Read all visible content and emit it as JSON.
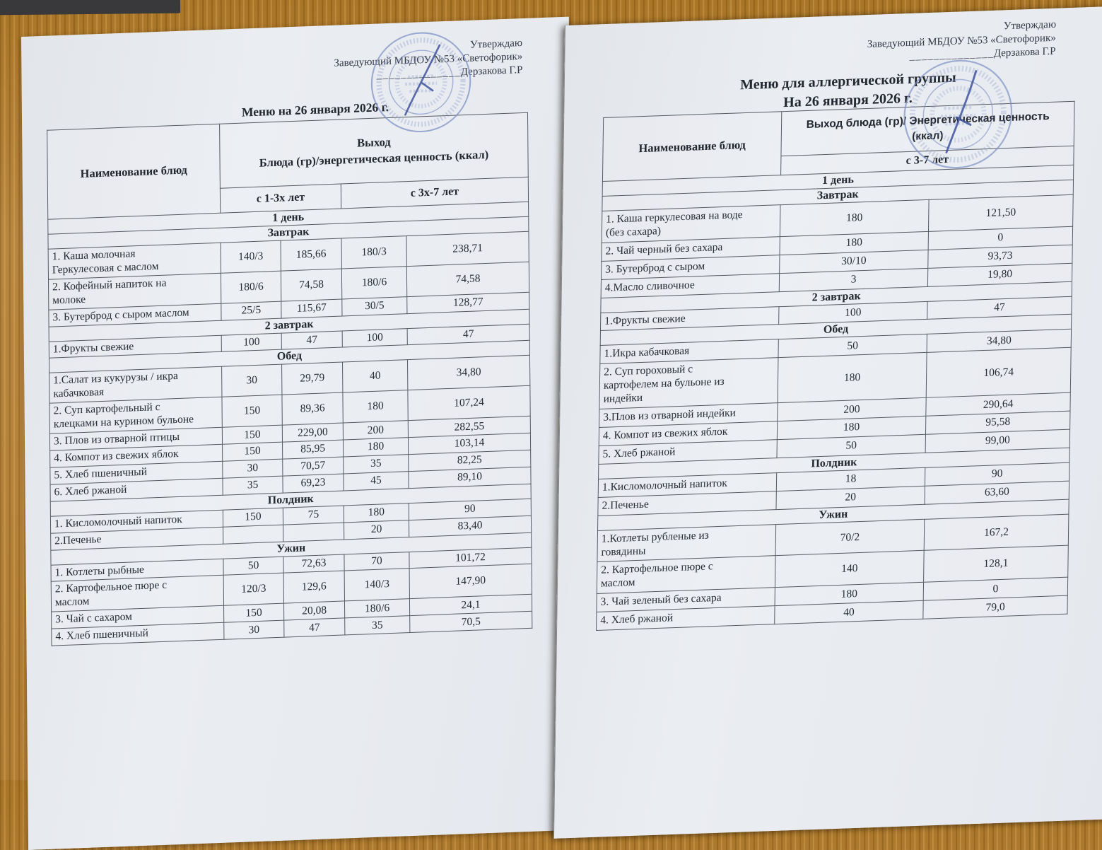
{
  "pages": {
    "left": {
      "approval": {
        "line1": "Утверждаю",
        "line2": "Заведующий МБДОУ №53 «Светофорик»",
        "signature_blank": "______________",
        "signee": "Дерзакова Г.Р"
      },
      "title": "Меню на 26 января 2026 г.",
      "table": {
        "header": {
          "name_col": "Наименование блюд",
          "value_col": "Выход\nБлюда (гр)/энергетическая ценность (ккал)",
          "age_groups": [
            "с 1-3х лет",
            "с 3х-7 лет"
          ]
        },
        "rows": [
          {
            "type": "section",
            "label": "1 день"
          },
          {
            "type": "section",
            "label": "Завтрак"
          },
          {
            "type": "item",
            "name": "1. Каша молочная\nГеркулесовая с маслом",
            "values": [
              "140/3",
              "185,66",
              "180/3",
              "238,71"
            ]
          },
          {
            "type": "item",
            "name": "2. Кофейный напиток на\nмолоке",
            "values": [
              "180/6",
              "74,58",
              "180/6",
              "74,58"
            ]
          },
          {
            "type": "item",
            "name": "3. Бутерброд с сыром маслом",
            "values": [
              "25/5",
              "115,67",
              "30/5",
              "128,77"
            ]
          },
          {
            "type": "section",
            "label": "2 завтрак"
          },
          {
            "type": "item",
            "name": "1.Фрукты свежие",
            "values": [
              "100",
              "47",
              "100",
              "47"
            ]
          },
          {
            "type": "section",
            "label": "Обед"
          },
          {
            "type": "item",
            "name": "1.Салат из кукурузы / икра\nкабачковая",
            "values": [
              "30",
              "29,79",
              "40",
              "34,80"
            ]
          },
          {
            "type": "item",
            "name": "2. Суп картофельный с\nклецками на курином бульоне",
            "values": [
              "150",
              "89,36",
              "180",
              "107,24"
            ]
          },
          {
            "type": "item",
            "name": "3. Плов из отварной птицы",
            "values": [
              "150",
              "229,00",
              "200",
              "282,55"
            ]
          },
          {
            "type": "item",
            "name": "4. Компот из свежих яблок",
            "values": [
              "150",
              "85,95",
              "180",
              "103,14"
            ]
          },
          {
            "type": "item",
            "name": "5. Хлеб пшеничный",
            "values": [
              "30",
              "70,57",
              "35",
              "82,25"
            ]
          },
          {
            "type": "item",
            "name": "6. Хлеб ржаной",
            "values": [
              "35",
              "69,23",
              "45",
              "89,10"
            ]
          },
          {
            "type": "section",
            "label": "Полдник"
          },
          {
            "type": "item",
            "name": "1. Кисломолочный напиток",
            "values": [
              "150",
              "75",
              "180",
              "90"
            ]
          },
          {
            "type": "item",
            "name": "2.Печенье",
            "values": [
              "",
              "",
              "20",
              "83,40"
            ]
          },
          {
            "type": "section",
            "label": "Ужин"
          },
          {
            "type": "item",
            "name": "1. Котлеты рыбные",
            "values": [
              "50",
              "72,63",
              "70",
              "101,72"
            ]
          },
          {
            "type": "item",
            "name": "2. Картофельное пюре с\nмаслом",
            "values": [
              "120/3",
              "129,6",
              "140/3",
              "147,90"
            ]
          },
          {
            "type": "item",
            "name": "3. Чай с сахаром",
            "values": [
              "150",
              "20,08",
              "180/6",
              "24,1"
            ]
          },
          {
            "type": "item",
            "name": "4. Хлеб пшеничный",
            "values": [
              "30",
              "47",
              "35",
              "70,5"
            ]
          }
        ]
      }
    },
    "right": {
      "approval": {
        "line1": "Утверждаю",
        "line2": "Заведующий МБДОУ №53 «Светофорик»",
        "signature_blank": "______________",
        "signee": "Дерзакова Г.Р"
      },
      "title_line1": "Меню для аллергической группы",
      "title_line2": "На 26 января 2026 г.",
      "table": {
        "header": {
          "name_col": "Наименование блюд",
          "value_col": "Выход блюда (гр)/ Энергетическая ценность\n(ккал)",
          "age_groups": [
            "с 3-7 лет"
          ]
        },
        "rows": [
          {
            "type": "section",
            "label": "1 день"
          },
          {
            "type": "section",
            "label": "Завтрак"
          },
          {
            "type": "item",
            "name": "1. Каша геркулесовая на воде\n(без сахара)",
            "values": [
              "180",
              "121,50"
            ]
          },
          {
            "type": "item",
            "name": "2. Чай черный без сахара",
            "values": [
              "180",
              "0"
            ]
          },
          {
            "type": "item",
            "name": "3. Бутерброд с сыром",
            "values": [
              "30/10",
              "93,73"
            ]
          },
          {
            "type": "item",
            "name": "4.Масло сливочное",
            "values": [
              "3",
              "19,80"
            ]
          },
          {
            "type": "section",
            "label": "2 завтрак"
          },
          {
            "type": "item",
            "name": "1.Фрукты свежие",
            "values": [
              "100",
              "47"
            ]
          },
          {
            "type": "section",
            "label": "Обед"
          },
          {
            "type": "item",
            "name": "1.Икра кабачковая",
            "values": [
              "50",
              "34,80"
            ]
          },
          {
            "type": "item",
            "name": "2. Суп гороховый с\nкартофелем на бульоне из\nиндейки",
            "values": [
              "180",
              "106,74"
            ]
          },
          {
            "type": "item",
            "name": "3.Плов из отварной индейки",
            "values": [
              "200",
              "290,64"
            ]
          },
          {
            "type": "item",
            "name": "4. Компот из свежих яблок",
            "values": [
              "180",
              "95,58"
            ]
          },
          {
            "type": "item",
            "name": "5. Хлеб ржаной",
            "values": [
              "50",
              "99,00"
            ]
          },
          {
            "type": "section",
            "label": "Полдник"
          },
          {
            "type": "item",
            "name": "1.Кисломолочный напиток",
            "values": [
              "18",
              "90"
            ]
          },
          {
            "type": "item",
            "name": "2.Печенье",
            "values": [
              "20",
              "63,60"
            ]
          },
          {
            "type": "section",
            "label": "Ужин"
          },
          {
            "type": "item",
            "name": "1.Котлеты рубленые из\nговядины",
            "values": [
              "70/2",
              "167,2"
            ]
          },
          {
            "type": "item",
            "name": "2. Картофельное пюре с\nмаслом",
            "values": [
              "140",
              "128,1"
            ]
          },
          {
            "type": "item",
            "name": "3. Чай зеленый без сахара",
            "values": [
              "180",
              "0"
            ]
          },
          {
            "type": "item",
            "name": "4. Хлеб ржаной",
            "values": [
              "40",
              "79,0"
            ]
          }
        ]
      }
    },
    "colors": {
      "stamp_blue": "#7e91c5",
      "signature_blue": "#40549e",
      "paper": "#e8ebf0",
      "wood": "#b07c33"
    }
  }
}
